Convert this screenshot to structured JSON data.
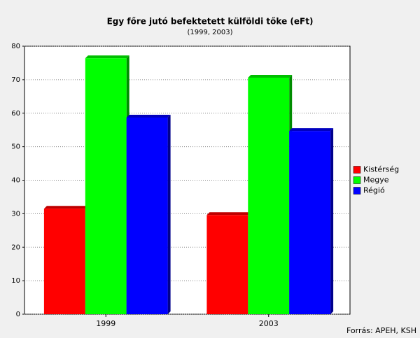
{
  "chart_data": {
    "type": "bar",
    "title": "Egy főre jutó befektetett külföldi tőke (eFt)",
    "subtitle": "(1999, 2003)",
    "source": "Forrás: APEH, KSH",
    "categories": [
      "1999",
      "2003"
    ],
    "series": [
      {
        "name": "Kistérség",
        "color": "#ff0000",
        "values": [
          31.5,
          29.6
        ]
      },
      {
        "name": "Megye",
        "color": "#00ff00",
        "values": [
          76.4,
          70.6
        ]
      },
      {
        "name": "Régió",
        "color": "#0000ff",
        "values": [
          58.7,
          54.7
        ]
      }
    ],
    "ylim": [
      0,
      80
    ],
    "yticks": [
      0,
      10,
      20,
      30,
      40,
      50,
      60,
      70,
      80
    ],
    "grid": true,
    "legend": "right"
  }
}
